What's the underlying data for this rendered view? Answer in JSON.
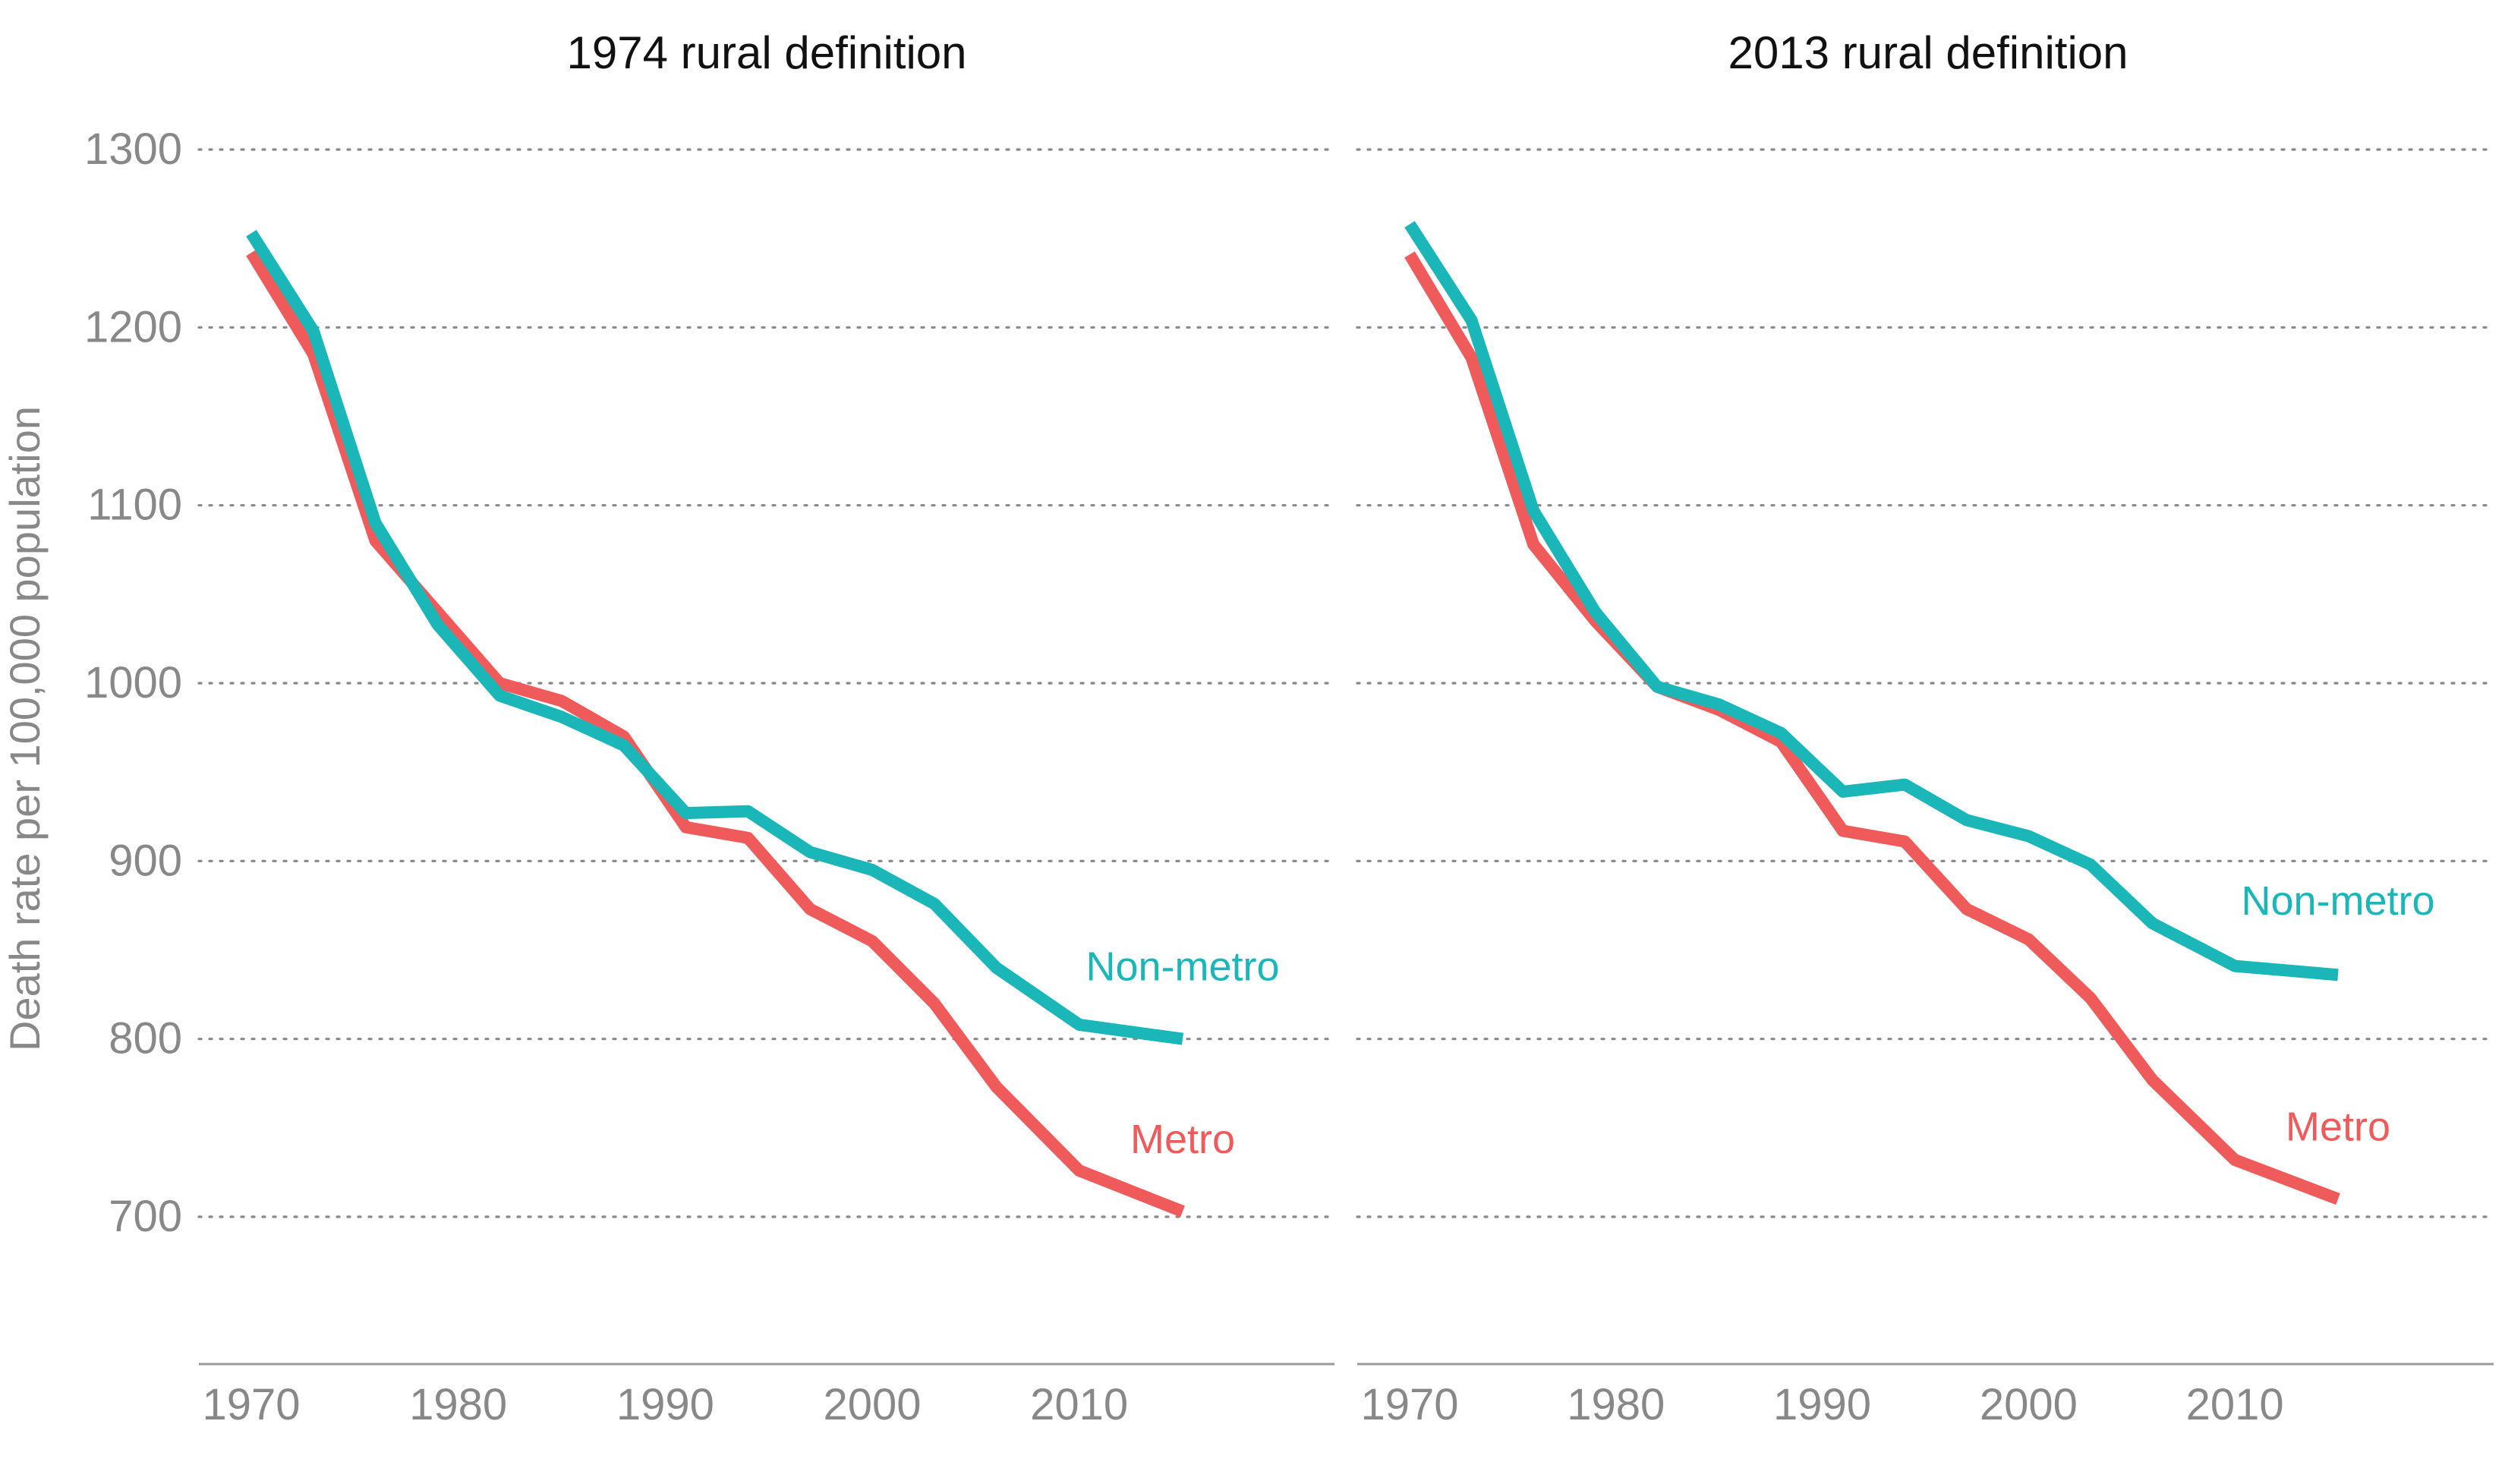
{
  "chart_data": {
    "type": "line",
    "ylabel": "Death rate per 100,000 population",
    "ylim": [
      620,
      1320
    ],
    "xlim": [
      1968,
      2024
    ],
    "y_ticks": [
      700,
      800,
      900,
      1000,
      1100,
      1200,
      1300
    ],
    "x_ticks": [
      1970,
      1980,
      1990,
      2000,
      2010
    ],
    "y_tick_labels": [
      "700",
      "800",
      "900",
      "1000",
      "1100",
      "1200",
      "1300"
    ],
    "x_tick_labels": [
      "1970",
      "1980",
      "1990",
      "2000",
      "2010"
    ],
    "grid": "horizontal-dotted",
    "colors": {
      "metro": "#ef5b5b",
      "nonmetro": "#1ab6b8",
      "text_gray": "#888888",
      "grid_gray": "#888888",
      "title_black": "#111111"
    },
    "panels": [
      {
        "title": "1974 rural definition",
        "x": [
          1970,
          1973,
          1976,
          1979,
          1982,
          1985,
          1988,
          1991,
          1994,
          1997,
          2000,
          2003,
          2006,
          2010,
          2015
        ],
        "series": [
          {
            "name": "Metro",
            "key": "metro",
            "values": [
              1242,
              1185,
              1080,
              1040,
              1000,
              990,
              970,
              919,
              913,
              873,
              855,
              820,
              773,
              726,
              703
            ]
          },
          {
            "name": "Non-metro",
            "key": "nonmetro",
            "values": [
              1253,
              1198,
              1090,
              1033,
              993,
              981,
              965,
              927,
              928,
              905,
              895,
              876,
              840,
              808,
              800
            ]
          }
        ],
        "annotations": [
          {
            "text": "Non-metro",
            "series": "nonmetro",
            "x": 2015,
            "y": 841
          },
          {
            "text": "Metro",
            "series": "metro",
            "x": 2015,
            "y": 744
          }
        ]
      },
      {
        "title": "2013 rural definition",
        "x": [
          1970,
          1973,
          1976,
          1979,
          1982,
          1985,
          1988,
          1991,
          1994,
          1997,
          2000,
          2003,
          2006,
          2010,
          2015
        ],
        "series": [
          {
            "name": "Metro",
            "key": "metro",
            "values": [
              1241,
              1183,
              1078,
              1035,
              998,
              985,
              967,
              917,
              911,
              873,
              856,
              823,
              777,
              732,
              710
            ]
          },
          {
            "name": "Non-metro",
            "key": "nonmetro",
            "values": [
              1258,
              1204,
              1097,
              1040,
              998,
              988,
              972,
              939,
              943,
              923,
              914,
              898,
              865,
              841,
              836
            ]
          }
        ],
        "annotations": [
          {
            "text": "Non-metro",
            "series": "nonmetro",
            "x": 2015,
            "y": 878
          },
          {
            "text": "Metro",
            "series": "metro",
            "x": 2015,
            "y": 751
          }
        ]
      }
    ]
  }
}
